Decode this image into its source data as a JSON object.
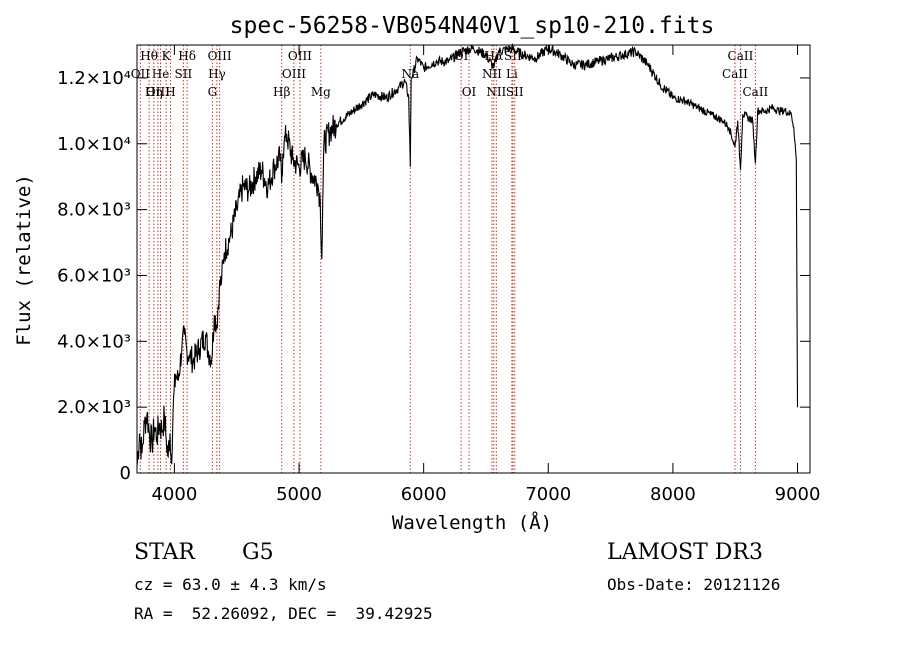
{
  "chart_data": {
    "type": "line",
    "title": "spec-56258-VB054N40V1_sp10-210.fits",
    "xlabel": "Wavelength (Å)",
    "ylabel": "Flux (relative)",
    "xlim": [
      3700,
      9100
    ],
    "ylim": [
      0,
      13000
    ],
    "xticks": [
      4000,
      5000,
      6000,
      7000,
      8000,
      9000
    ],
    "xtick_labels": [
      "4000",
      "5000",
      "6000",
      "7000",
      "8000",
      "9000"
    ],
    "yticks": [
      0,
      2000,
      4000,
      6000,
      8000,
      10000,
      12000
    ],
    "ytick_labels": [
      "0",
      "2.0×10³",
      "4.0×10³",
      "6.0×10³",
      "8.0×10³",
      "1.0×10⁴",
      "1.2×10⁴"
    ],
    "series": [
      {
        "name": "spectrum",
        "x": [
          3700,
          3720,
          3740,
          3760,
          3780,
          3800,
          3820,
          3840,
          3860,
          3880,
          3900,
          3920,
          3935,
          3950,
          3965,
          3975,
          3990,
          4010,
          4030,
          4060,
          4080,
          4100,
          4120,
          4150,
          4200,
          4250,
          4270,
          4300,
          4320,
          4340,
          4360,
          4380,
          4400,
          4450,
          4500,
          4550,
          4600,
          4650,
          4700,
          4750,
          4800,
          4850,
          4860,
          4870,
          4880,
          4900,
          4950,
          5000,
          5050,
          5100,
          5150,
          5170,
          5183,
          5190,
          5200,
          5250,
          5300,
          5400,
          5500,
          5600,
          5700,
          5800,
          5850,
          5880,
          5893,
          5900,
          5920,
          5950,
          6000,
          6100,
          6200,
          6300,
          6400,
          6500,
          6563,
          6600,
          6700,
          6800,
          6900,
          7000,
          7100,
          7200,
          7300,
          7400,
          7500,
          7600,
          7700,
          7800,
          7900,
          8000,
          8100,
          8200,
          8300,
          8400,
          8450,
          8498,
          8520,
          8542,
          8560,
          8600,
          8640,
          8662,
          8680,
          8700,
          8750,
          8800,
          8850,
          8900,
          8950,
          8970,
          8990,
          9000
        ],
        "y": [
          200,
          1200,
          600,
          1500,
          1800,
          1200,
          900,
          1400,
          1100,
          1500,
          1300,
          1700,
          1000,
          500,
          1200,
          300,
          1900,
          3000,
          2800,
          3800,
          4200,
          3700,
          3600,
          3400,
          3800,
          4200,
          3700,
          3500,
          4800,
          4500,
          5600,
          5900,
          6700,
          7200,
          8000,
          8700,
          8600,
          9000,
          9200,
          8700,
          9300,
          9600,
          8800,
          9700,
          10000,
          10300,
          9500,
          9300,
          9600,
          9100,
          8800,
          8300,
          6500,
          8200,
          10000,
          10400,
          10600,
          10900,
          11200,
          11500,
          11400,
          11700,
          11900,
          11400,
          9300,
          12000,
          12200,
          12600,
          12300,
          12500,
          12500,
          12800,
          12900,
          12700,
          12300,
          12800,
          12900,
          12700,
          12600,
          12900,
          12700,
          12400,
          12400,
          12500,
          12600,
          12700,
          12800,
          12400,
          11800,
          11400,
          11300,
          11100,
          10900,
          10700,
          10500,
          9900,
          10700,
          9200,
          10900,
          10800,
          10700,
          9400,
          11000,
          11000,
          11000,
          11100,
          11000,
          11000,
          10900,
          10500,
          9500,
          2000
        ]
      }
    ],
    "lines": [
      {
        "name": "Hθ",
        "wave": 3797,
        "row": 0
      },
      {
        "name": "OII",
        "wave": 3727,
        "row": 1
      },
      {
        "name": "OIII",
        "wave": 3868,
        "row": 2
      },
      {
        "name": "K",
        "wave": 3934,
        "row": 0
      },
      {
        "name": "He",
        "wave": 3889,
        "row": 1
      },
      {
        "name": "Hη",
        "wave": 3835,
        "row": 2
      },
      {
        "name": "SII",
        "wave": 4072,
        "row": 1
      },
      {
        "name": "H",
        "wave": 3969,
        "row": 2
      },
      {
        "name": "Hδ",
        "wave": 4102,
        "row": 0
      },
      {
        "name": "OIII",
        "wave": 4363,
        "row": 0
      },
      {
        "name": "Hγ",
        "wave": 4341,
        "row": 1
      },
      {
        "name": "G",
        "wave": 4305,
        "row": 2
      },
      {
        "name": "OIII",
        "wave": 5007,
        "row": 0
      },
      {
        "name": "OIII",
        "wave": 4959,
        "row": 1
      },
      {
        "name": "Hβ",
        "wave": 4861,
        "row": 2
      },
      {
        "name": "Mg",
        "wave": 5175,
        "row": 2
      },
      {
        "name": "Na",
        "wave": 5893,
        "row": 1
      },
      {
        "name": "OI",
        "wave": 6300,
        "row": 0
      },
      {
        "name": "OI",
        "wave": 6364,
        "row": 2
      },
      {
        "name": "Hα",
        "wave": 6563,
        "row": 0
      },
      {
        "name": "NII",
        "wave": 6548,
        "row": 1
      },
      {
        "name": "NII",
        "wave": 6583,
        "row": 2
      },
      {
        "name": "SII",
        "wave": 6716,
        "row": 0
      },
      {
        "name": "Li",
        "wave": 6708,
        "row": 1
      },
      {
        "name": "SII",
        "wave": 6731,
        "row": 2
      },
      {
        "name": "CaII",
        "wave": 8542,
        "row": 0
      },
      {
        "name": "CaII",
        "wave": 8498,
        "row": 1
      },
      {
        "name": "CaII",
        "wave": 8662,
        "row": 2
      }
    ]
  },
  "info": {
    "object_class": "STAR",
    "subclass": "G5",
    "survey": "LAMOST DR3",
    "redshift": "cz = 63.0 ± 4.3 km/s",
    "obs_date": "Obs-Date: 20121126",
    "coords": "RA =  52.26092, DEC =  39.42925"
  }
}
